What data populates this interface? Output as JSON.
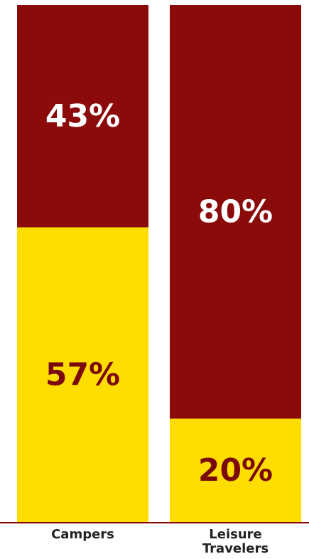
{
  "chart_data": {
    "type": "bar",
    "stacked": true,
    "percent": true,
    "categories": [
      "Campers",
      "Leisure Travelers"
    ],
    "category_lines": [
      [
        "Campers"
      ],
      [
        "Leisure",
        "Travelers"
      ]
    ],
    "series": [
      {
        "values": [
          57,
          20
        ],
        "labels": [
          "57%",
          "20%"
        ],
        "color": "#FFDD00",
        "label_color": "#7A0A0A"
      },
      {
        "values": [
          43,
          80
        ],
        "labels": [
          "43%",
          "80%"
        ],
        "color": "#8B0A0A",
        "label_color": "#FFFFFF"
      }
    ],
    "ylim": [
      0,
      100
    ],
    "baseline_color": "#8B0A0A",
    "category_label_color": "#222222"
  }
}
